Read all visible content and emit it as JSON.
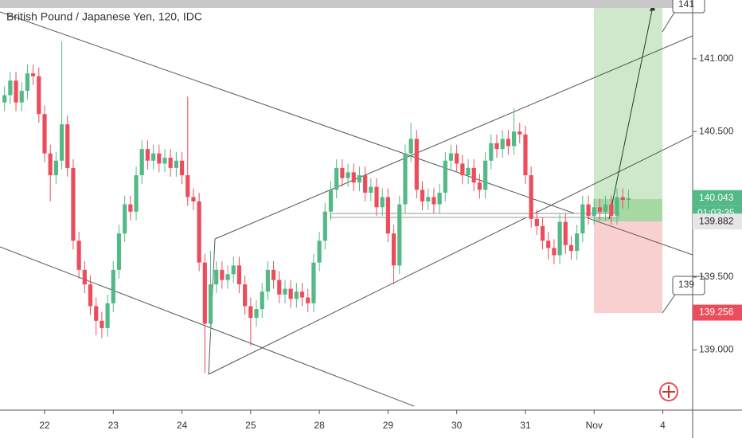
{
  "chart_data": {
    "type": "candlestick",
    "title": "British Pound / Japanese Yen, 120, IDC",
    "up_color": "#53b987",
    "down_color": "#eb4d5c",
    "open": [
      140.7,
      140.75,
      140.85,
      140.7,
      140.78,
      140.9,
      140.88,
      140.62,
      140.35,
      140.2,
      140.3,
      140.55,
      140.25,
      139.75,
      139.55,
      139.45,
      139.3,
      139.2,
      139.15,
      139.32,
      139.55,
      139.8,
      140.0,
      139.95,
      140.2,
      140.38,
      140.3,
      140.35,
      140.28,
      140.32,
      140.25,
      140.3,
      140.2,
      140.05,
      140.02,
      139.6,
      139.18,
      139.45,
      139.55,
      139.48,
      139.52,
      139.58,
      139.45,
      139.3,
      139.22,
      139.28,
      139.4,
      139.55,
      139.48,
      139.38,
      139.42,
      139.35,
      139.4,
      139.36,
      139.32,
      139.6,
      139.75,
      139.95,
      140.1,
      140.25,
      140.18,
      140.22,
      140.15,
      140.2,
      140.08,
      140.12,
      139.98,
      140.05,
      139.8,
      139.58,
      140.0,
      140.35,
      140.45,
      140.1,
      140.02,
      140.05,
      140.0,
      140.08,
      140.3,
      140.35,
      140.28,
      140.2,
      140.25,
      140.15,
      140.1,
      140.3,
      140.42,
      140.38,
      140.45,
      140.4,
      140.5,
      140.48,
      140.2,
      139.9,
      139.85,
      139.75,
      139.7,
      139.65,
      139.88,
      139.72,
      139.68,
      139.8,
      140.0,
      139.92,
      139.98,
      139.95,
      140.0,
      139.92,
      140.05,
      140.03
    ],
    "high": [
      140.81,
      140.91,
      140.91,
      140.84,
      140.96,
      140.96,
      140.94,
      140.68,
      140.41,
      140.36,
      141.12,
      140.61,
      140.31,
      139.81,
      139.61,
      139.51,
      139.36,
      139.26,
      139.38,
      139.61,
      139.86,
      140.06,
      140.06,
      140.26,
      140.44,
      140.44,
      140.41,
      140.41,
      140.38,
      140.38,
      140.36,
      140.36,
      140.74,
      140.11,
      140.08,
      139.66,
      139.68,
      139.61,
      139.61,
      139.58,
      139.64,
      139.64,
      139.51,
      139.36,
      139.34,
      139.46,
      139.61,
      139.61,
      139.54,
      139.48,
      139.48,
      139.46,
      139.46,
      139.42,
      139.66,
      139.81,
      140.01,
      140.16,
      140.31,
      140.31,
      140.28,
      140.28,
      140.26,
      140.26,
      140.18,
      140.18,
      140.11,
      140.11,
      139.86,
      140.06,
      140.41,
      140.56,
      140.51,
      140.16,
      140.11,
      140.11,
      140.14,
      140.36,
      140.41,
      140.41,
      140.34,
      140.31,
      140.31,
      140.21,
      140.36,
      140.48,
      140.48,
      140.51,
      140.51,
      140.66,
      140.56,
      140.54,
      140.26,
      139.96,
      139.91,
      139.81,
      139.76,
      139.94,
      139.94,
      139.78,
      139.86,
      140.06,
      140.06,
      140.04,
      140.04,
      140.06,
      140.06,
      140.11,
      140.11,
      140.1
    ],
    "low": [
      140.64,
      140.69,
      140.64,
      140.64,
      140.72,
      140.82,
      140.56,
      140.29,
      140.02,
      140.14,
      140.24,
      140.19,
      139.69,
      139.49,
      139.39,
      139.24,
      139.1,
      139.08,
      139.09,
      139.26,
      139.49,
      139.74,
      139.89,
      139.89,
      140.14,
      140.24,
      140.24,
      140.22,
      140.22,
      140.19,
      140.19,
      140.14,
      139.99,
      139.96,
      139.54,
      138.84,
      139.12,
      139.39,
      139.42,
      139.42,
      139.46,
      139.39,
      139.24,
      139.03,
      139.16,
      139.22,
      139.34,
      139.42,
      139.32,
      139.32,
      139.29,
      139.29,
      139.3,
      139.26,
      139.26,
      139.54,
      139.69,
      139.89,
      140.04,
      140.12,
      140.12,
      140.09,
      140.09,
      140.02,
      140.02,
      139.92,
      139.92,
      139.74,
      139.45,
      139.52,
      139.94,
      140.29,
      140.04,
      139.96,
      139.96,
      139.94,
      139.94,
      140.02,
      140.24,
      140.22,
      140.14,
      140.14,
      140.09,
      140.04,
      140.04,
      140.24,
      140.32,
      140.32,
      140.34,
      140.34,
      140.42,
      140.14,
      139.84,
      139.79,
      139.69,
      139.62,
      139.59,
      139.59,
      139.66,
      139.62,
      139.62,
      139.74,
      139.86,
      139.86,
      139.89,
      139.89,
      139.86,
      139.86,
      139.97,
      139.97
    ],
    "close": [
      140.75,
      140.85,
      140.7,
      140.78,
      140.9,
      140.88,
      140.62,
      140.35,
      140.2,
      140.3,
      140.55,
      140.25,
      139.75,
      139.55,
      139.45,
      139.3,
      139.2,
      139.15,
      139.32,
      139.55,
      139.8,
      140.0,
      139.95,
      140.2,
      140.38,
      140.3,
      140.35,
      140.28,
      140.32,
      140.25,
      140.3,
      140.2,
      140.05,
      140.02,
      139.6,
      139.18,
      139.45,
      139.55,
      139.48,
      139.52,
      139.58,
      139.45,
      139.3,
      139.22,
      139.28,
      139.4,
      139.55,
      139.48,
      139.38,
      139.42,
      139.35,
      139.4,
      139.36,
      139.32,
      139.6,
      139.75,
      139.95,
      140.1,
      140.25,
      140.18,
      140.22,
      140.15,
      140.2,
      140.08,
      140.12,
      139.98,
      140.05,
      139.8,
      139.58,
      140.0,
      140.35,
      140.45,
      140.1,
      140.02,
      140.05,
      140.0,
      140.08,
      140.3,
      140.35,
      140.28,
      140.2,
      140.25,
      140.15,
      140.1,
      140.3,
      140.42,
      140.38,
      140.45,
      140.4,
      140.5,
      140.48,
      140.2,
      139.9,
      139.85,
      139.75,
      139.7,
      139.65,
      139.88,
      139.72,
      139.68,
      139.8,
      140.0,
      139.92,
      139.98,
      139.95,
      140.0,
      139.92,
      140.05,
      140.03,
      140.043
    ],
    "ylim": [
      138.586,
      141.404
    ],
    "yticks": [
      {
        "value": 139,
        "label": "139.000"
      },
      {
        "value": 139.5,
        "label": "139.500"
      },
      {
        "value": 140.5,
        "label": "140.500"
      },
      {
        "value": 141,
        "label": "141.000"
      }
    ],
    "xticks": [
      {
        "value": 7,
        "label": "22"
      },
      {
        "value": 19,
        "label": "23"
      },
      {
        "value": 31,
        "label": "24"
      },
      {
        "value": 43,
        "label": "25"
      },
      {
        "value": 55,
        "label": "28"
      },
      {
        "value": 67,
        "label": "29"
      },
      {
        "value": 79,
        "label": "30"
      },
      {
        "value": 91,
        "label": "31"
      },
      {
        "value": 103,
        "label": "Nov"
      },
      {
        "value": 115,
        "label": "4"
      }
    ],
    "price_labels": [
      {
        "value": 140.043,
        "label": "140.043",
        "color": "#53b987"
      },
      {
        "value": 139.882,
        "label": "139.882",
        "color": "#e6e6e6"
      },
      {
        "value": 139.256,
        "label": "139.256",
        "color": "#eb4d5c"
      }
    ],
    "countdown": "01:03:35",
    "callouts": [
      "141",
      "139"
    ]
  }
}
